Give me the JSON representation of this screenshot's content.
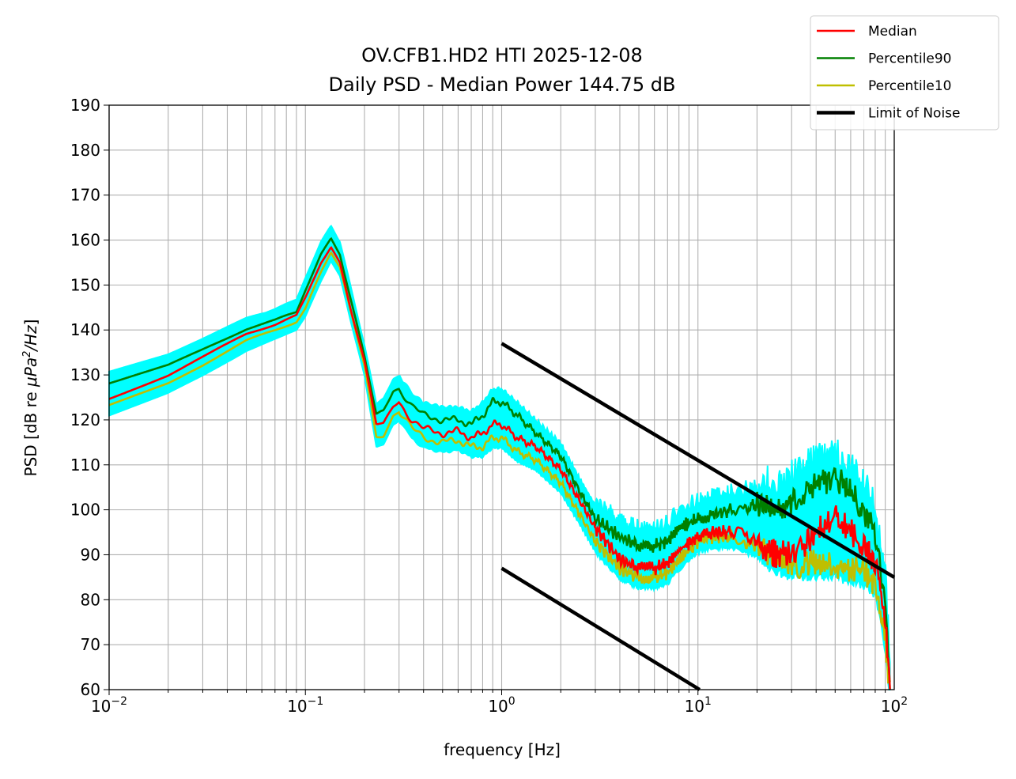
{
  "chart_data": {
    "type": "line",
    "title": [
      "OV.CFB1.HD2 HTI 2025-12-08",
      "Daily PSD - Median Power 144.75 dB"
    ],
    "xlabel": "frequency [Hz]",
    "ylabel_parts": {
      "prefix": "PSD [dB re ",
      "mu": "μPa",
      "sup": "2",
      "suffix_italic": "/Hz",
      "end": "]"
    },
    "xscale": "log",
    "xlim": [
      0.01,
      100
    ],
    "ylim": [
      60,
      190
    ],
    "grid": true,
    "legend_placement": "top-right (outside)",
    "x_ticks": [
      {
        "base": "10",
        "exp": "−2"
      },
      {
        "base": "10",
        "exp": "−1"
      },
      {
        "base": "10",
        "exp": "0"
      },
      {
        "base": "10",
        "exp": "1"
      },
      {
        "base": "10",
        "exp": "2"
      }
    ],
    "y_ticks": [
      "60",
      "70",
      "80",
      "90",
      "100",
      "110",
      "120",
      "130",
      "140",
      "150",
      "160",
      "170",
      "180",
      "190"
    ],
    "series": [
      {
        "name": "Median",
        "color": "#ff0000",
        "points": [
          [
            0.01,
            125
          ],
          [
            0.02,
            130
          ],
          [
            0.03,
            134
          ],
          [
            0.05,
            139
          ],
          [
            0.07,
            141
          ],
          [
            0.09,
            143
          ],
          [
            0.1,
            147
          ],
          [
            0.12,
            155
          ],
          [
            0.135,
            158.5
          ],
          [
            0.15,
            155
          ],
          [
            0.17,
            145
          ],
          [
            0.2,
            133
          ],
          [
            0.23,
            119
          ],
          [
            0.25,
            119
          ],
          [
            0.28,
            123
          ],
          [
            0.3,
            124
          ],
          [
            0.35,
            120
          ],
          [
            0.4,
            118
          ],
          [
            0.5,
            117
          ],
          [
            0.6,
            117.5
          ],
          [
            0.7,
            116
          ],
          [
            0.8,
            117
          ],
          [
            0.9,
            119
          ],
          [
            1.0,
            119
          ],
          [
            1.2,
            116
          ],
          [
            1.5,
            114
          ],
          [
            2,
            109
          ],
          [
            2.5,
            102
          ],
          [
            3,
            96
          ],
          [
            4,
            89
          ],
          [
            5,
            87
          ],
          [
            6,
            87
          ],
          [
            7,
            88
          ],
          [
            8,
            91
          ],
          [
            10,
            94
          ],
          [
            12,
            95
          ],
          [
            15,
            95
          ],
          [
            20,
            93
          ],
          [
            25,
            90
          ],
          [
            30,
            90
          ],
          [
            40,
            95
          ],
          [
            50,
            98
          ],
          [
            60,
            95
          ],
          [
            70,
            92
          ],
          [
            80,
            88
          ],
          [
            90,
            75
          ],
          [
            95,
            60
          ]
        ]
      },
      {
        "name": "Percentile90",
        "color": "#008000",
        "points": [
          [
            0.01,
            128
          ],
          [
            0.02,
            132
          ],
          [
            0.03,
            135.5
          ],
          [
            0.05,
            140
          ],
          [
            0.07,
            142
          ],
          [
            0.09,
            144
          ],
          [
            0.1,
            149
          ],
          [
            0.12,
            157
          ],
          [
            0.135,
            160.5
          ],
          [
            0.15,
            157
          ],
          [
            0.17,
            147
          ],
          [
            0.2,
            134
          ],
          [
            0.23,
            121
          ],
          [
            0.25,
            122
          ],
          [
            0.28,
            126.5
          ],
          [
            0.3,
            127
          ],
          [
            0.35,
            123
          ],
          [
            0.4,
            121
          ],
          [
            0.5,
            120
          ],
          [
            0.6,
            120
          ],
          [
            0.7,
            119
          ],
          [
            0.8,
            121
          ],
          [
            0.9,
            124
          ],
          [
            1.0,
            124
          ],
          [
            1.2,
            121
          ],
          [
            1.5,
            117
          ],
          [
            2,
            112
          ],
          [
            2.5,
            104
          ],
          [
            3,
            98
          ],
          [
            4,
            94
          ],
          [
            5,
            92
          ],
          [
            6,
            92
          ],
          [
            7,
            93
          ],
          [
            8,
            96
          ],
          [
            10,
            98
          ],
          [
            12,
            99
          ],
          [
            15,
            100
          ],
          [
            20,
            101
          ],
          [
            25,
            100
          ],
          [
            30,
            102
          ],
          [
            40,
            106
          ],
          [
            50,
            107
          ],
          [
            60,
            104
          ],
          [
            70,
            100
          ],
          [
            80,
            95
          ],
          [
            90,
            80
          ],
          [
            95,
            60
          ]
        ]
      },
      {
        "name": "Percentile10",
        "color": "#bfbf00",
        "points": [
          [
            0.01,
            123
          ],
          [
            0.02,
            128
          ],
          [
            0.03,
            132
          ],
          [
            0.05,
            137.5
          ],
          [
            0.07,
            140
          ],
          [
            0.09,
            142
          ],
          [
            0.1,
            145
          ],
          [
            0.12,
            153
          ],
          [
            0.135,
            157.5
          ],
          [
            0.15,
            154
          ],
          [
            0.17,
            144
          ],
          [
            0.2,
            132
          ],
          [
            0.23,
            116
          ],
          [
            0.25,
            116.5
          ],
          [
            0.28,
            121
          ],
          [
            0.3,
            122
          ],
          [
            0.35,
            118
          ],
          [
            0.4,
            116
          ],
          [
            0.5,
            115
          ],
          [
            0.6,
            115.5
          ],
          [
            0.7,
            114
          ],
          [
            0.8,
            114
          ],
          [
            0.9,
            116
          ],
          [
            1.0,
            116
          ],
          [
            1.2,
            113
          ],
          [
            1.5,
            111
          ],
          [
            2,
            106
          ],
          [
            2.5,
            99
          ],
          [
            3,
            93
          ],
          [
            4,
            87
          ],
          [
            5,
            85
          ],
          [
            6,
            85
          ],
          [
            7,
            86
          ],
          [
            8,
            89
          ],
          [
            10,
            93
          ],
          [
            12,
            94
          ],
          [
            15,
            94
          ],
          [
            20,
            92
          ],
          [
            25,
            89
          ],
          [
            30,
            88
          ],
          [
            40,
            88
          ],
          [
            50,
            88
          ],
          [
            60,
            87
          ],
          [
            70,
            86
          ],
          [
            80,
            84
          ],
          [
            90,
            72
          ],
          [
            95,
            60
          ]
        ]
      },
      {
        "name": "Limit of Noise",
        "color": "#000000",
        "segments": [
          [
            [
              1,
              137
            ],
            [
              100,
              85
            ]
          ],
          [
            [
              1,
              87
            ],
            [
              10.2,
              60
            ]
          ]
        ]
      }
    ],
    "envelope": {
      "color": "#00ffff",
      "upper_offset_db": 2.5,
      "lower_offset_db": 2.0
    }
  }
}
